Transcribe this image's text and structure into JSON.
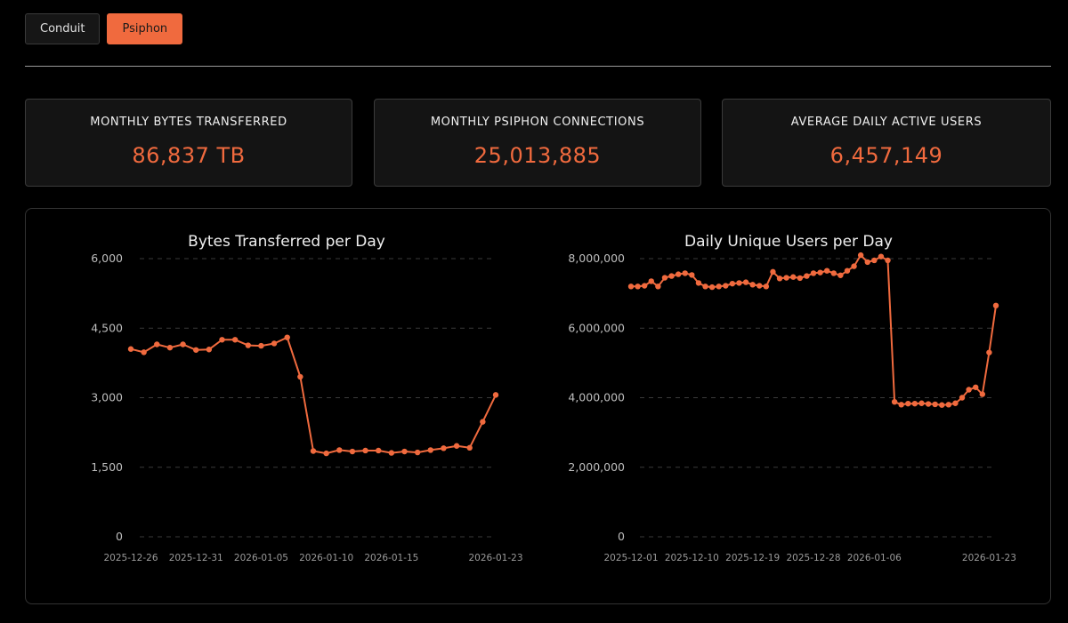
{
  "tabs": [
    {
      "label": "Conduit",
      "active": false
    },
    {
      "label": "Psiphon",
      "active": true
    }
  ],
  "stats": [
    {
      "label": "MONTHLY BYTES TRANSFERRED",
      "value": "86,837 TB"
    },
    {
      "label": "MONTHLY PSIPHON CONNECTIONS",
      "value": "25,013,885"
    },
    {
      "label": "AVERAGE DAILY ACTIVE USERS",
      "value": "6,457,149"
    }
  ],
  "colors": {
    "accent": "#f06a3e",
    "background": "#000000",
    "card": "#141414"
  },
  "chart_data": [
    {
      "type": "line",
      "title": "Bytes Transferred per Day",
      "xlabel": "",
      "ylabel": "",
      "ylim": [
        0,
        6000
      ],
      "yticks": [
        0,
        1500,
        3000,
        4500,
        6000
      ],
      "ytick_labels": [
        "0",
        "1,500",
        "3,000",
        "4,500",
        "6,000"
      ],
      "grid": true,
      "x_start": "2025-12-26",
      "xticks": [
        0,
        5,
        10,
        15,
        20,
        28
      ],
      "xtick_labels": [
        "2025-12-26",
        "2025-12-31",
        "2026-01-05",
        "2026-01-10",
        "2026-01-15",
        "2026-01-23"
      ],
      "series": [
        {
          "name": "Bytes Transferred",
          "values": [
            4050,
            3980,
            4150,
            4080,
            4150,
            4030,
            4040,
            4250,
            4250,
            4130,
            4120,
            4170,
            4300,
            3450,
            1850,
            1800,
            1870,
            1840,
            1860,
            1860,
            1810,
            1840,
            1820,
            1870,
            1910,
            1960,
            1920,
            2480,
            3060
          ]
        }
      ]
    },
    {
      "type": "line",
      "title": "Daily Unique Users per Day",
      "xlabel": "",
      "ylabel": "",
      "ylim": [
        0,
        8000000
      ],
      "yticks": [
        0,
        2000000,
        4000000,
        6000000,
        8000000
      ],
      "ytick_labels": [
        "0",
        "2,000,000",
        "4,000,000",
        "6,000,000",
        "8,000,000"
      ],
      "grid": true,
      "x_start": "2025-12-01",
      "xticks": [
        0,
        9,
        18,
        27,
        36,
        53
      ],
      "xtick_labels": [
        "2025-12-01",
        "2025-12-10",
        "2025-12-19",
        "2025-12-28",
        "2026-01-06",
        "2026-01-23"
      ],
      "series": [
        {
          "name": "Daily Unique Users",
          "values": [
            7200000,
            7200000,
            7220000,
            7350000,
            7200000,
            7450000,
            7500000,
            7550000,
            7580000,
            7530000,
            7300000,
            7200000,
            7180000,
            7200000,
            7220000,
            7280000,
            7300000,
            7320000,
            7250000,
            7220000,
            7200000,
            7620000,
            7430000,
            7450000,
            7470000,
            7440000,
            7500000,
            7580000,
            7600000,
            7650000,
            7580000,
            7520000,
            7650000,
            7780000,
            8100000,
            7900000,
            7950000,
            8060000,
            7950000,
            3880000,
            3800000,
            3830000,
            3830000,
            3840000,
            3820000,
            3810000,
            3790000,
            3800000,
            3840000,
            4000000,
            4230000,
            4300000,
            4100000,
            5300000,
            6650000
          ]
        }
      ]
    }
  ]
}
